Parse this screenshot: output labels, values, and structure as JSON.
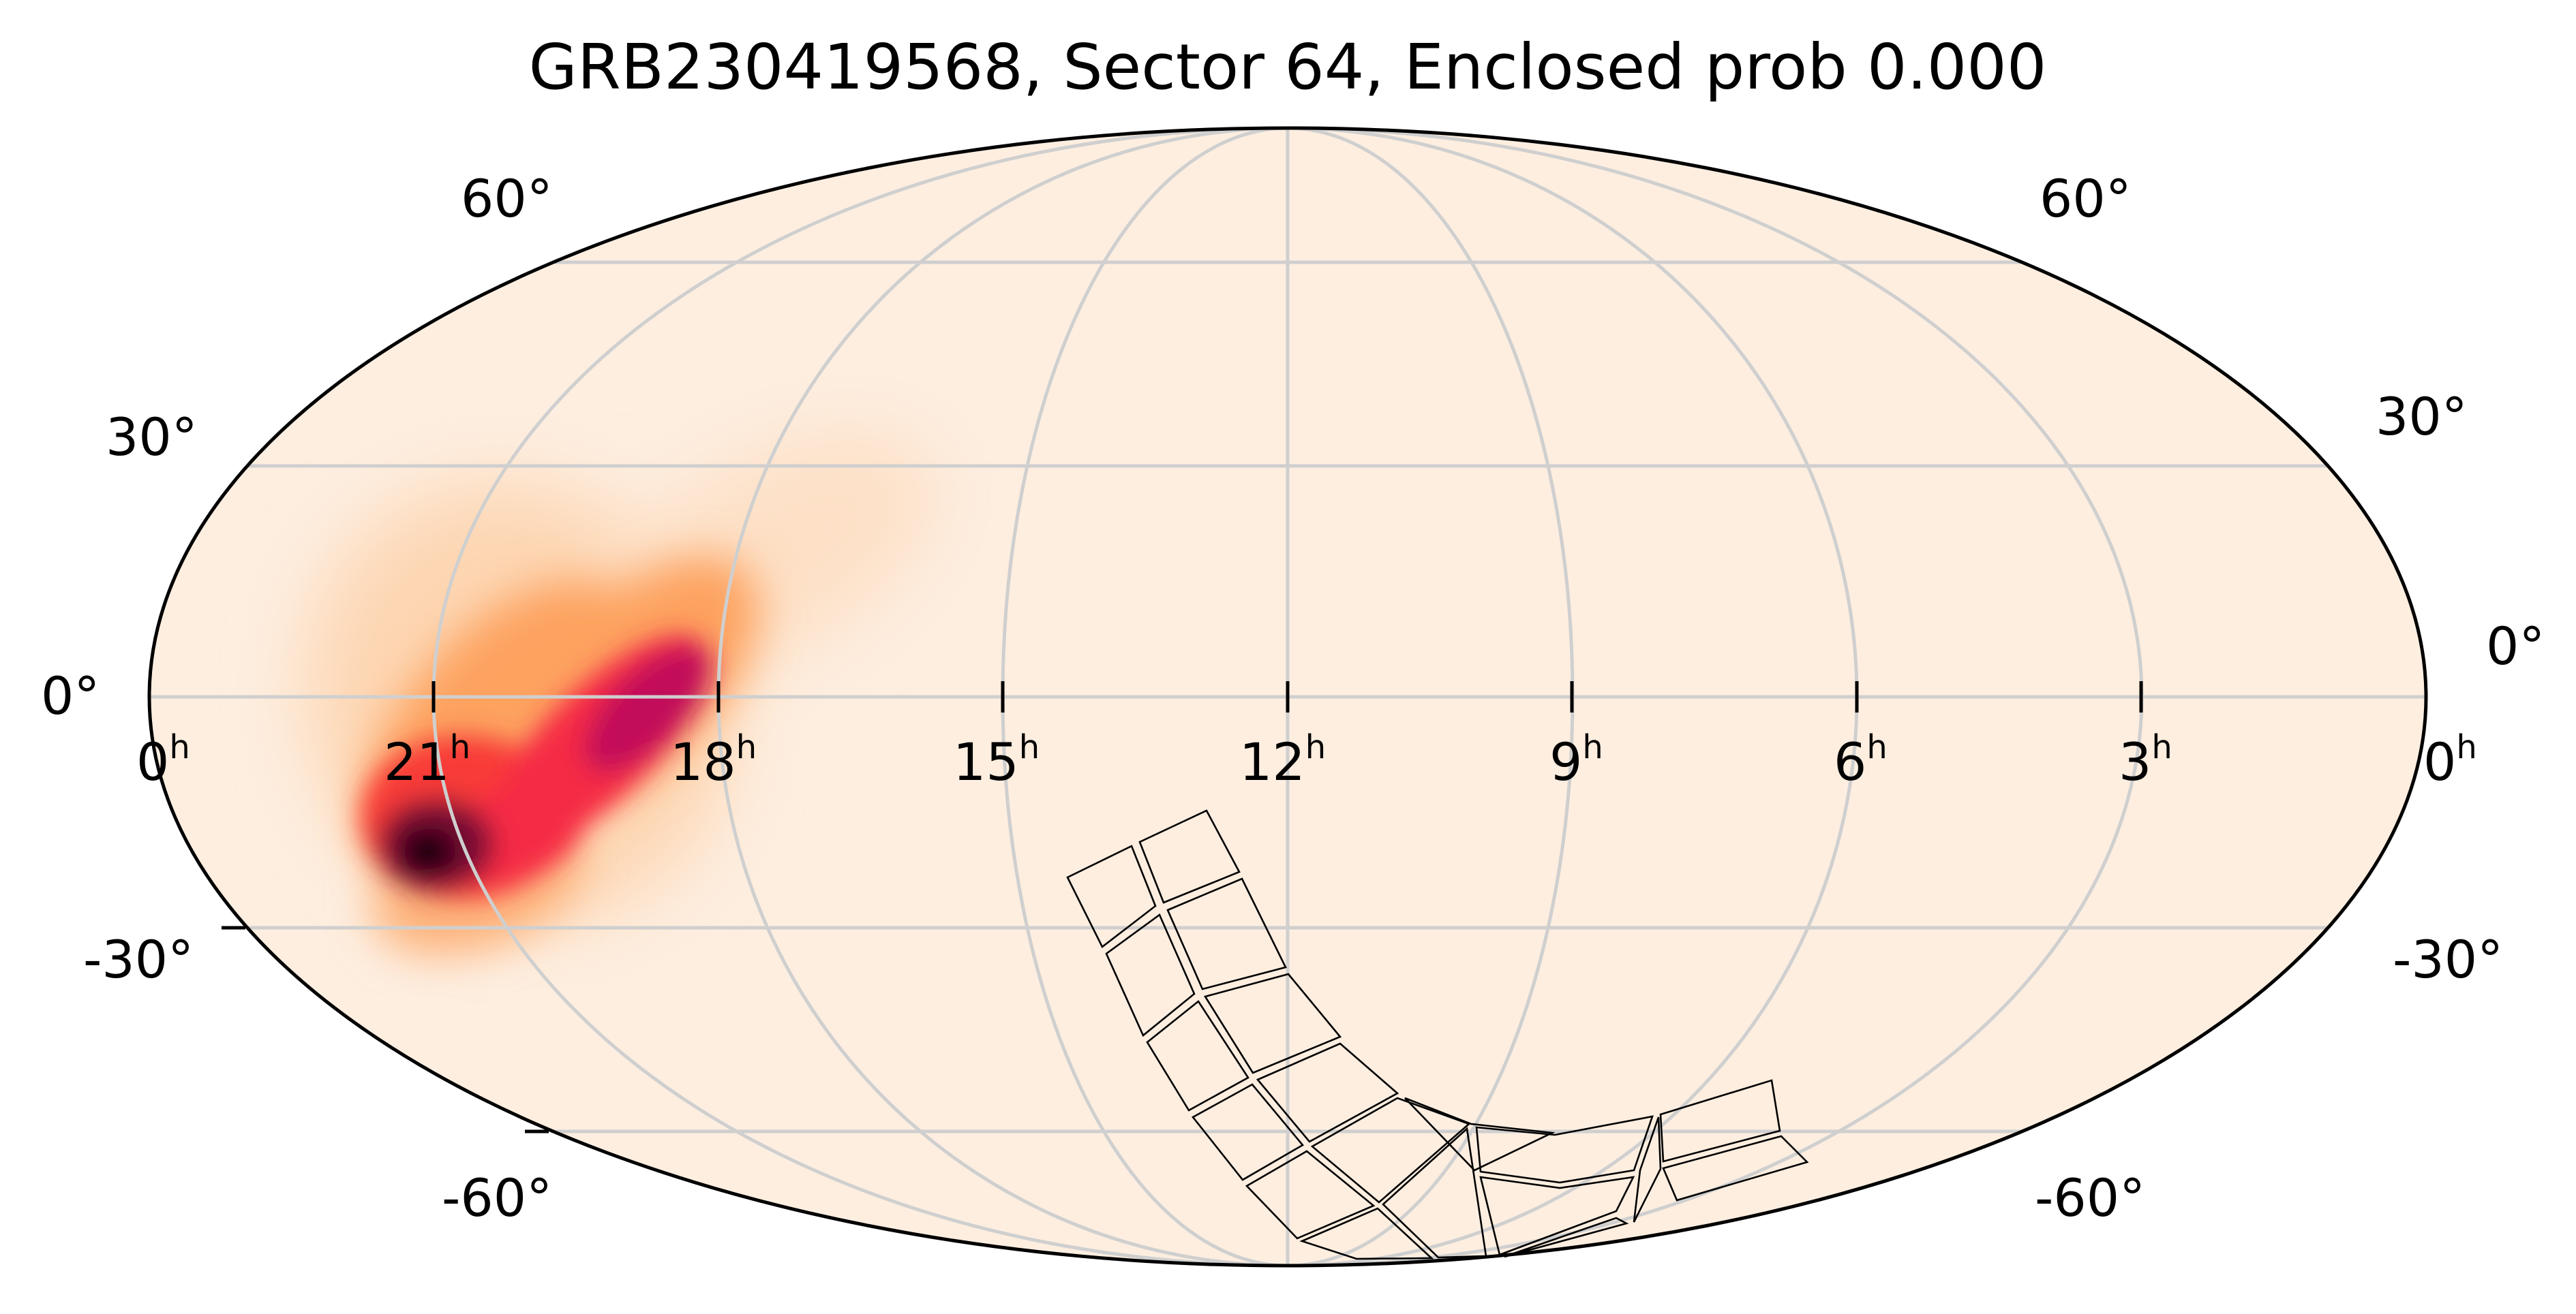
{
  "figure": {
    "title": "GRB230419568, Sector 64, Enclosed prob 0.000",
    "projection": "mollweide",
    "grid": true,
    "colors": {
      "background": "#fdeee0",
      "grid": "#cfcfcf",
      "outline": "#000000",
      "probability_colormap": [
        "#fdeee0",
        "#fdd6b2",
        "#fd9f5a",
        "#fb5d2e",
        "#f21e4a",
        "#c2105a",
        "#6e1038",
        "#1a0608"
      ]
    },
    "ra_ticks": [
      {
        "value": "0",
        "unit": "h"
      },
      {
        "value": "21",
        "unit": "h"
      },
      {
        "value": "18",
        "unit": "h"
      },
      {
        "value": "15",
        "unit": "h"
      },
      {
        "value": "12",
        "unit": "h"
      },
      {
        "value": "9",
        "unit": "h"
      },
      {
        "value": "6",
        "unit": "h"
      },
      {
        "value": "3",
        "unit": "h"
      },
      {
        "value": "0",
        "unit": "h"
      }
    ],
    "dec_labels_left": [
      "60°",
      "30°",
      "0°",
      "-30°",
      "-60°"
    ],
    "dec_labels_right": [
      "60°",
      "30°",
      "0°",
      "-30°",
      "-60°"
    ]
  }
}
